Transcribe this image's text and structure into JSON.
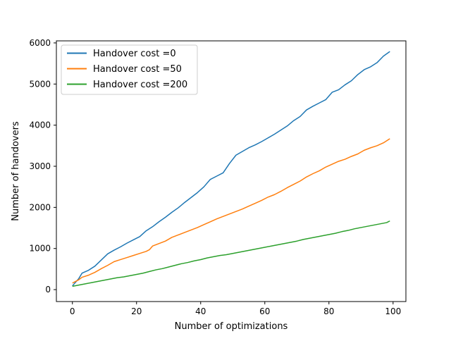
{
  "chart_data": {
    "type": "line",
    "xlabel": "Number of optimizations",
    "ylabel": "Number of handovers",
    "xlim": [
      -5,
      104
    ],
    "ylim": [
      -290,
      6050
    ],
    "x_ticks": [
      0,
      20,
      40,
      60,
      80,
      100
    ],
    "y_ticks": [
      0,
      1000,
      2000,
      3000,
      4000,
      5000,
      6000
    ],
    "x_tick_labels": [
      "0",
      "20",
      "40",
      "60",
      "80",
      "100"
    ],
    "y_tick_labels": [
      "0",
      "1000",
      "2000",
      "3000",
      "4000",
      "5000",
      "6000"
    ],
    "grid": false,
    "legend_position": "upper-left",
    "series": [
      {
        "name": "Handover cost =0",
        "color": "#1f77b4",
        "x": [
          0,
          2,
          3,
          5,
          7,
          9,
          11,
          13,
          15,
          17,
          19,
          21,
          23,
          25,
          27,
          29,
          31,
          33,
          35,
          37,
          39,
          41,
          43,
          45,
          47,
          49,
          51,
          53,
          55,
          57,
          59,
          61,
          63,
          65,
          67,
          69,
          71,
          73,
          75,
          77,
          79,
          81,
          83,
          85,
          87,
          89,
          91,
          93,
          95,
          97,
          99
        ],
        "y": [
          90,
          270,
          400,
          470,
          570,
          720,
          870,
          960,
          1040,
          1130,
          1210,
          1290,
          1430,
          1530,
          1650,
          1760,
          1880,
          1990,
          2120,
          2240,
          2360,
          2500,
          2680,
          2760,
          2840,
          3070,
          3270,
          3360,
          3450,
          3520,
          3600,
          3690,
          3780,
          3880,
          3980,
          4110,
          4210,
          4370,
          4460,
          4540,
          4620,
          4800,
          4860,
          4980,
          5080,
          5230,
          5350,
          5420,
          5520,
          5680,
          5790
        ]
      },
      {
        "name": "Handover cost =50",
        "color": "#ff7f0e",
        "x": [
          0,
          2,
          3,
          5,
          7,
          9,
          11,
          13,
          15,
          17,
          19,
          21,
          23,
          24,
          25,
          27,
          29,
          31,
          33,
          35,
          37,
          39,
          41,
          43,
          45,
          47,
          49,
          51,
          53,
          55,
          57,
          59,
          61,
          63,
          65,
          67,
          69,
          71,
          73,
          75,
          77,
          79,
          81,
          83,
          85,
          87,
          89,
          91,
          93,
          95,
          97,
          99
        ],
        "y": [
          160,
          240,
          300,
          350,
          420,
          510,
          590,
          680,
          730,
          780,
          830,
          880,
          930,
          970,
          1060,
          1120,
          1180,
          1270,
          1330,
          1390,
          1450,
          1510,
          1580,
          1650,
          1720,
          1780,
          1840,
          1900,
          1960,
          2030,
          2100,
          2170,
          2250,
          2310,
          2390,
          2480,
          2560,
          2640,
          2740,
          2820,
          2890,
          2980,
          3050,
          3120,
          3170,
          3240,
          3300,
          3390,
          3450,
          3500,
          3570,
          3670
        ]
      },
      {
        "name": "Handover cost =200",
        "color": "#2ca02c",
        "x": [
          0,
          2,
          4,
          6,
          8,
          10,
          12,
          14,
          16,
          18,
          20,
          22,
          24,
          26,
          28,
          30,
          32,
          34,
          36,
          38,
          40,
          42,
          44,
          46,
          48,
          50,
          52,
          54,
          56,
          58,
          60,
          62,
          64,
          66,
          68,
          70,
          72,
          74,
          76,
          78,
          80,
          82,
          84,
          86,
          88,
          90,
          92,
          94,
          96,
          98,
          99
        ],
        "y": [
          80,
          110,
          140,
          170,
          200,
          230,
          260,
          290,
          310,
          340,
          370,
          400,
          440,
          480,
          510,
          550,
          590,
          630,
          660,
          700,
          730,
          770,
          800,
          830,
          850,
          880,
          910,
          940,
          970,
          1000,
          1030,
          1060,
          1090,
          1120,
          1150,
          1180,
          1220,
          1250,
          1280,
          1310,
          1340,
          1370,
          1410,
          1440,
          1480,
          1510,
          1540,
          1570,
          1600,
          1630,
          1670
        ]
      }
    ]
  }
}
